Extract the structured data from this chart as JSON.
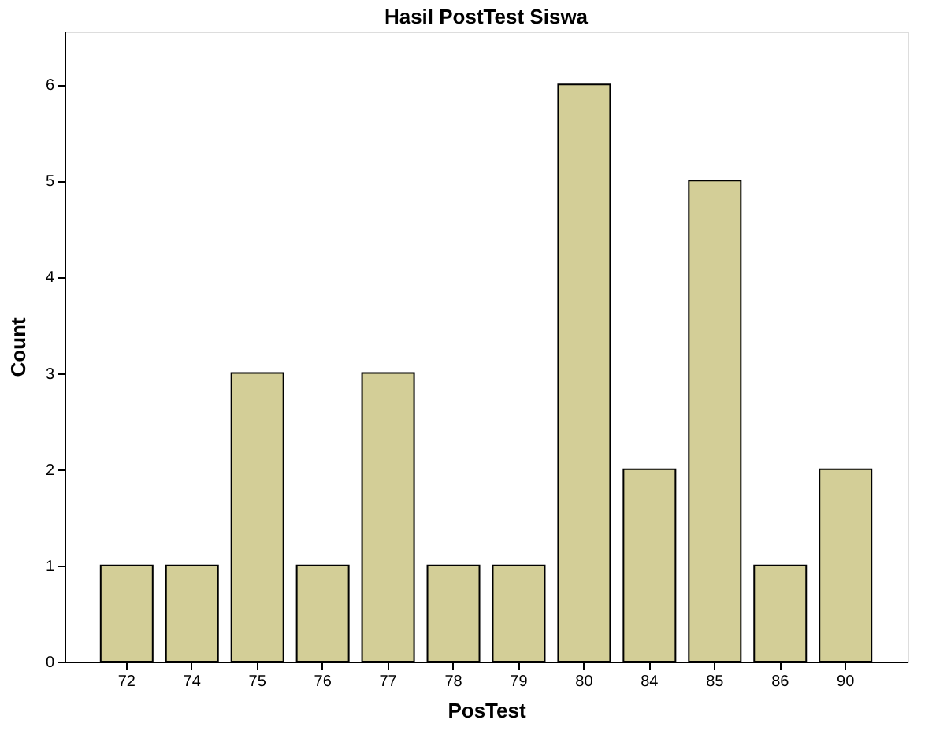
{
  "chart_data": {
    "type": "bar",
    "title": "Hasil PostTest Siswa",
    "xlabel": "PosTest",
    "ylabel": "Count",
    "categories": [
      "72",
      "74",
      "75",
      "76",
      "77",
      "78",
      "79",
      "80",
      "84",
      "85",
      "86",
      "90"
    ],
    "values": [
      1,
      1,
      3,
      1,
      3,
      1,
      1,
      6,
      2,
      5,
      1,
      2
    ],
    "color": "#d3ce97",
    "ylim": [
      0,
      6.55
    ],
    "yticks": [
      0,
      1,
      2,
      3,
      4,
      5,
      6
    ],
    "grid": false
  }
}
